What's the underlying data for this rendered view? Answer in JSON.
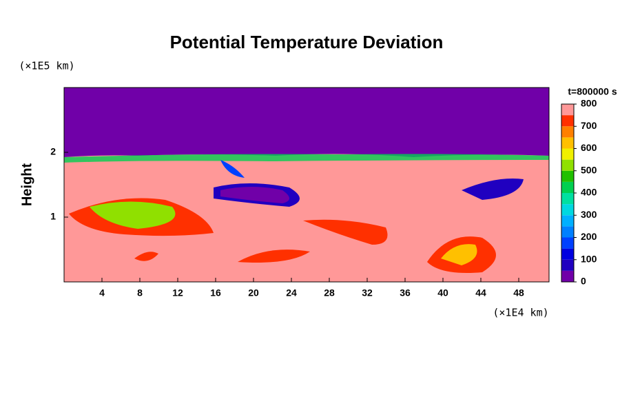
{
  "chart_data": {
    "type": "contour",
    "title": "Potential Temperature Deviation",
    "y_label": "Height",
    "y_unit": "(×1E5 km)",
    "x_unit": "(×1E4 km)",
    "time_label": "t=800000 s",
    "xlim": [
      0,
      51.2
    ],
    "xticks": [
      4,
      8,
      12,
      16,
      20,
      24,
      28,
      32,
      36,
      40,
      44,
      48
    ],
    "ylim": [
      0,
      3
    ],
    "yticks": [
      1,
      2
    ],
    "colorbar": {
      "lim": [
        0,
        800
      ],
      "ticks": [
        0,
        100,
        200,
        300,
        400,
        500,
        600,
        700,
        800
      ],
      "levels": [
        0,
        50,
        100,
        150,
        200,
        250,
        300,
        350,
        400,
        450,
        500,
        550,
        600,
        650,
        700,
        750,
        800
      ],
      "colors": [
        "#7000a8",
        "#2000c0",
        "#0000e0",
        "#0040ff",
        "#0080ff",
        "#00b0ff",
        "#00d8e0",
        "#00e0a0",
        "#00d050",
        "#20c000",
        "#90e000",
        "#f0f000",
        "#ffc000",
        "#ff8000",
        "#ff3000",
        "#ff9898"
      ]
    }
  }
}
